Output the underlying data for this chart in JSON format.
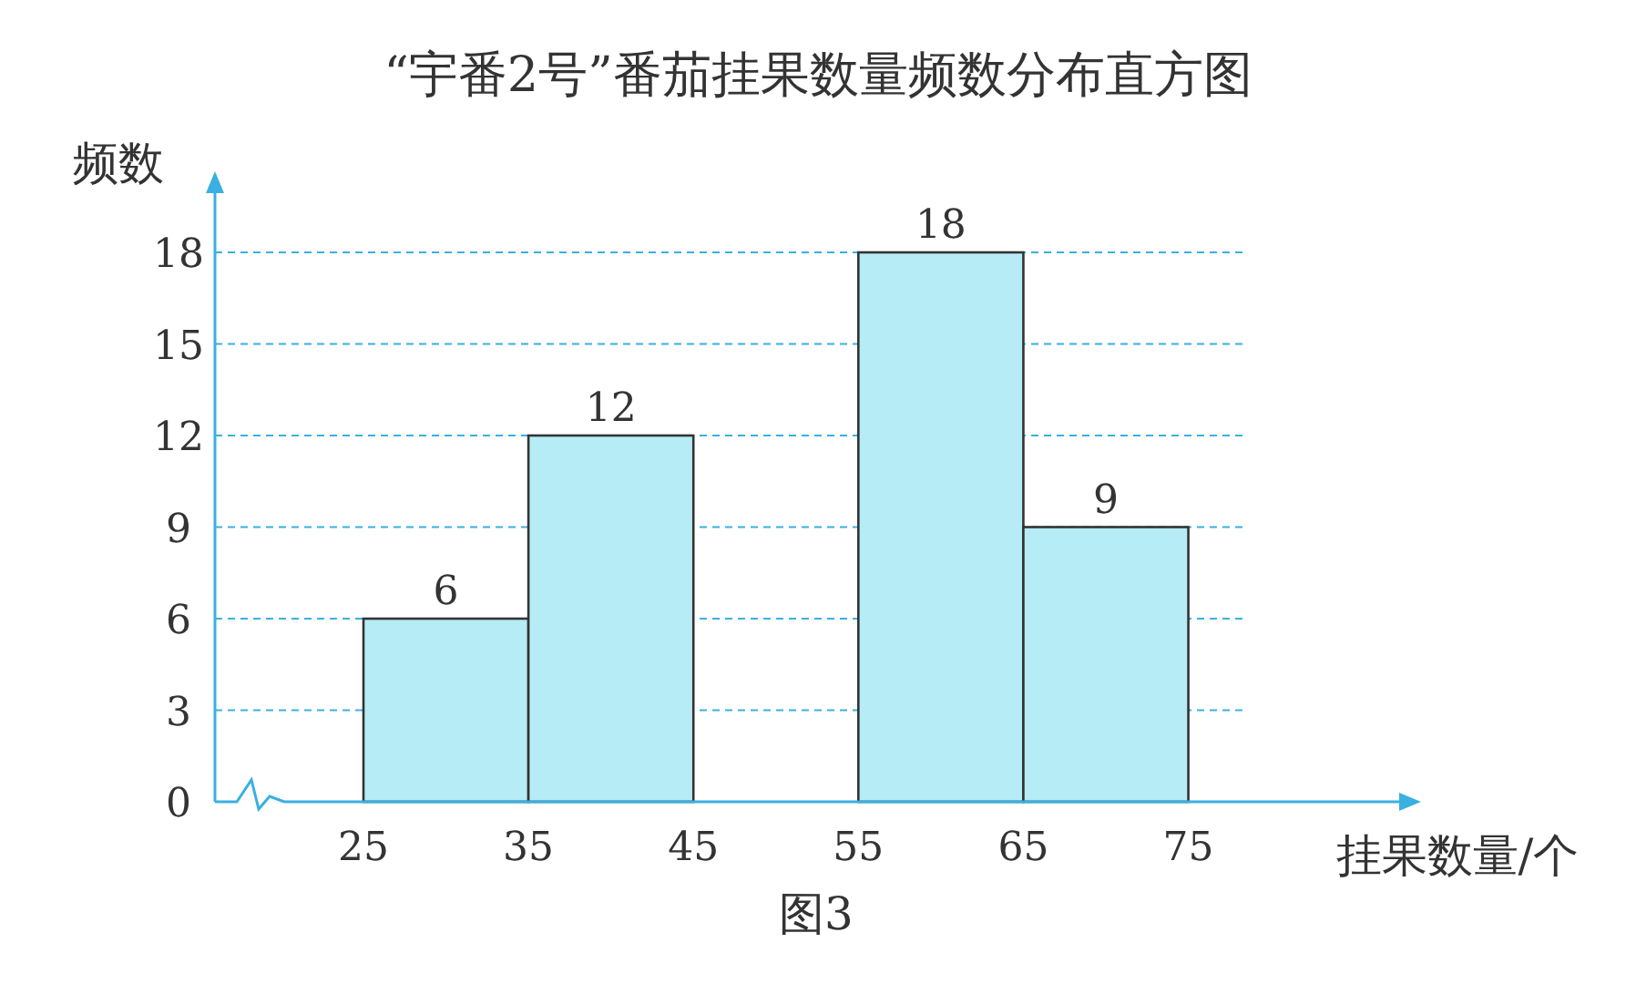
{
  "chart_data": {
    "type": "histogram",
    "title": "“宇番2号”番茄挂果数量频数分布直方图",
    "ylabel": "频数",
    "xlabel": "挂果数量/个",
    "annotations": [
      "图3"
    ],
    "bins": [
      25,
      35,
      45,
      55,
      65,
      75
    ],
    "values": [
      6,
      12,
      null,
      18,
      9
    ],
    "color": "#b5ecf6",
    "xlim": [
      16,
      88
    ],
    "ylim": [
      0,
      20
    ],
    "xticks": [
      25,
      35,
      45,
      55,
      65,
      75
    ],
    "yticks": [
      0,
      3,
      6,
      9,
      12,
      15,
      18
    ],
    "grid": "y",
    "data_labels": true
  }
}
